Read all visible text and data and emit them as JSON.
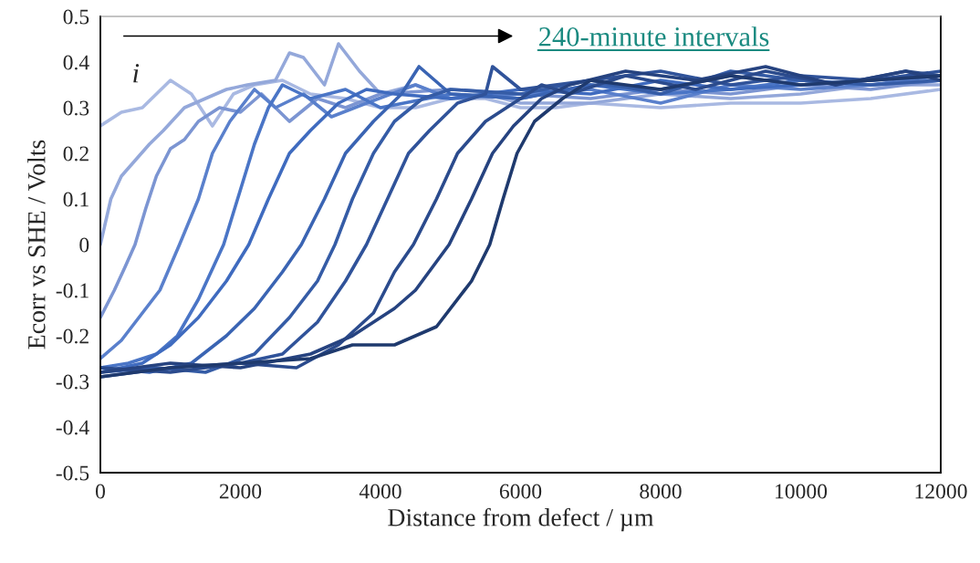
{
  "chart_data": {
    "type": "line",
    "xlabel": "Distance from defect / µm",
    "ylabel": "Ecorr vs SHE / Volts",
    "xlim": [
      0,
      12000
    ],
    "xticks": [
      0,
      2000,
      4000,
      6000,
      8000,
      10000,
      12000
    ],
    "ylim": [
      -0.5,
      0.5
    ],
    "yticks": [
      {
        "value": -0.5,
        "label": "-0.5"
      },
      {
        "value": -0.4,
        "label": "-0.4"
      },
      {
        "value": -0.3,
        "label": "-0.3"
      },
      {
        "value": -0.2,
        "label": "-0.2"
      },
      {
        "value": -0.1,
        "label": "-0.1"
      },
      0,
      0.1,
      0.2,
      0.3,
      0.4,
      0.5
    ],
    "grid": false,
    "legend": false,
    "marker": "none",
    "line_style": "solid",
    "annotations": [
      "i",
      "240-minute intervals"
    ],
    "series": [
      {
        "color": "#a9b9e2",
        "x": [
          0,
          300,
          600,
          1000,
          1300,
          1600,
          1900,
          2200,
          2600,
          3000,
          3500,
          4000,
          4500,
          5000,
          5500,
          6000,
          6500,
          7000,
          8000,
          9000,
          10000,
          11000,
          12000
        ],
        "values": [
          0.26,
          0.29,
          0.3,
          0.36,
          0.33,
          0.26,
          0.33,
          0.35,
          0.36,
          0.33,
          0.32,
          0.3,
          0.3,
          0.32,
          0.32,
          0.3,
          0.3,
          0.31,
          0.3,
          0.31,
          0.31,
          0.32,
          0.34
        ]
      },
      {
        "color": "#94a8da",
        "x": [
          0,
          150,
          300,
          700,
          900,
          1200,
          1500,
          1800,
          2100,
          2500,
          2700,
          2900,
          3200,
          3400,
          3700,
          4000,
          4500,
          5000,
          5500,
          6000,
          7000,
          8000,
          9000,
          10000,
          11000,
          12000
        ],
        "values": [
          0.0,
          0.1,
          0.15,
          0.22,
          0.25,
          0.3,
          0.32,
          0.34,
          0.35,
          0.36,
          0.42,
          0.41,
          0.35,
          0.44,
          0.38,
          0.33,
          0.35,
          0.32,
          0.33,
          0.31,
          0.31,
          0.33,
          0.32,
          0.33,
          0.35,
          0.35
        ]
      },
      {
        "color": "#7c95d2",
        "x": [
          0,
          200,
          350,
          495,
          650,
          800,
          1000,
          1200,
          1400,
          1700,
          2000,
          2300,
          2700,
          3100,
          3500,
          4000,
          5000,
          6000,
          7000,
          8000,
          9000,
          10000,
          11000,
          12000
        ],
        "values": [
          -0.16,
          -0.1,
          -0.05,
          0.0,
          0.08,
          0.15,
          0.21,
          0.23,
          0.27,
          0.3,
          0.29,
          0.33,
          0.27,
          0.32,
          0.3,
          0.33,
          0.34,
          0.33,
          0.32,
          0.34,
          0.33,
          0.35,
          0.34,
          0.36
        ]
      },
      {
        "color": "#5a80cc",
        "x": [
          0,
          300,
          600,
          850,
          1130,
          1400,
          1600,
          1850,
          2200,
          2500,
          2900,
          3300,
          3800,
          4500,
          5000,
          6000,
          7000,
          8000,
          9000,
          10000,
          11000,
          12000
        ],
        "values": [
          -0.25,
          -0.21,
          -0.15,
          -0.1,
          0.0,
          0.1,
          0.2,
          0.27,
          0.34,
          0.3,
          0.33,
          0.28,
          0.31,
          0.35,
          0.32,
          0.33,
          0.34,
          0.31,
          0.35,
          0.34,
          0.35,
          0.37
        ]
      },
      {
        "color": "#4a75c6",
        "x": [
          0,
          400,
          800,
          1100,
          1400,
          1760,
          2000,
          2200,
          2400,
          2600,
          3000,
          3500,
          4000,
          5000,
          6000,
          7000,
          8000,
          9000,
          10000,
          11000,
          12000
        ],
        "values": [
          -0.27,
          -0.26,
          -0.24,
          -0.2,
          -0.12,
          0.0,
          0.12,
          0.22,
          0.3,
          0.35,
          0.32,
          0.34,
          0.3,
          0.33,
          0.32,
          0.35,
          0.33,
          0.34,
          0.36,
          0.35,
          0.36
        ]
      },
      {
        "color": "#3f6bbf",
        "x": [
          0,
          600,
          1000,
          1400,
          1800,
          2120,
          2400,
          2700,
          3000,
          3400,
          3800,
          4200,
          5000,
          6000,
          7000,
          8000,
          9000,
          10000,
          11000,
          12000
        ],
        "values": [
          -0.28,
          -0.26,
          -0.22,
          -0.16,
          -0.08,
          0.0,
          0.1,
          0.2,
          0.25,
          0.31,
          0.34,
          0.33,
          0.32,
          0.34,
          0.33,
          0.36,
          0.34,
          0.35,
          0.36,
          0.37
        ]
      },
      {
        "color": "#3a64b3",
        "x": [
          0,
          700,
          1300,
          1800,
          2200,
          2600,
          2870,
          3200,
          3500,
          3900,
          4300,
          4550,
          5000,
          6000,
          7000,
          8000,
          9000,
          10000,
          11000,
          12000
        ],
        "values": [
          -0.27,
          -0.28,
          -0.26,
          -0.2,
          -0.14,
          -0.06,
          0.0,
          0.1,
          0.2,
          0.27,
          0.33,
          0.39,
          0.33,
          0.32,
          0.35,
          0.34,
          0.37,
          0.35,
          0.36,
          0.37
        ]
      },
      {
        "color": "#355ca6",
        "x": [
          0,
          800,
          1500,
          2200,
          2700,
          3100,
          3350,
          3600,
          3900,
          4200,
          4600,
          5000,
          6000,
          7000,
          8000,
          9000,
          10000,
          11000,
          12000
        ],
        "values": [
          -0.28,
          -0.27,
          -0.28,
          -0.24,
          -0.16,
          -0.08,
          0.0,
          0.1,
          0.2,
          0.27,
          0.32,
          0.34,
          0.33,
          0.36,
          0.33,
          0.38,
          0.36,
          0.35,
          0.36
        ]
      },
      {
        "color": "#30539a",
        "x": [
          0,
          1000,
          2000,
          2600,
          3100,
          3500,
          3800,
          4100,
          4400,
          4700,
          5100,
          5500,
          5600,
          6000,
          7000,
          8000,
          9000,
          10000,
          11000,
          12000
        ],
        "values": [
          -0.29,
          -0.27,
          -0.26,
          -0.24,
          -0.17,
          -0.08,
          0.0,
          0.1,
          0.2,
          0.25,
          0.31,
          0.33,
          0.39,
          0.34,
          0.36,
          0.38,
          0.35,
          0.37,
          0.36,
          0.38
        ]
      },
      {
        "color": "#2b4b8d",
        "x": [
          0,
          1000,
          2000,
          2800,
          3400,
          3900,
          4200,
          4470,
          4800,
          5100,
          5500,
          5900,
          6300,
          6700,
          7500,
          8500,
          9500,
          10500,
          11500,
          12000
        ],
        "values": [
          -0.27,
          -0.28,
          -0.26,
          -0.27,
          -0.22,
          -0.15,
          -0.06,
          0.0,
          0.1,
          0.2,
          0.27,
          0.31,
          0.35,
          0.33,
          0.37,
          0.34,
          0.38,
          0.35,
          0.38,
          0.37
        ]
      },
      {
        "color": "#264380",
        "x": [
          0,
          1000,
          2000,
          3000,
          3600,
          4200,
          4500,
          4980,
          5300,
          5600,
          5900,
          6300,
          6700,
          7500,
          8500,
          9500,
          10500,
          11500,
          12000
        ],
        "values": [
          -0.28,
          -0.26,
          -0.27,
          -0.24,
          -0.2,
          -0.14,
          -0.1,
          0.0,
          0.1,
          0.2,
          0.26,
          0.32,
          0.35,
          0.38,
          0.36,
          0.39,
          0.35,
          0.38,
          0.36
        ]
      },
      {
        "color": "#1f3a6e",
        "x": [
          0,
          1000,
          2000,
          3000,
          3600,
          4200,
          4800,
          5300,
          5560,
          5750,
          5950,
          6200,
          6600,
          7000,
          8000,
          9000,
          10000,
          11000,
          12000
        ],
        "values": [
          -0.29,
          -0.27,
          -0.26,
          -0.25,
          -0.22,
          -0.22,
          -0.18,
          -0.08,
          0.0,
          0.1,
          0.2,
          0.27,
          0.32,
          0.36,
          0.34,
          0.37,
          0.35,
          0.36,
          0.37
        ]
      }
    ]
  }
}
